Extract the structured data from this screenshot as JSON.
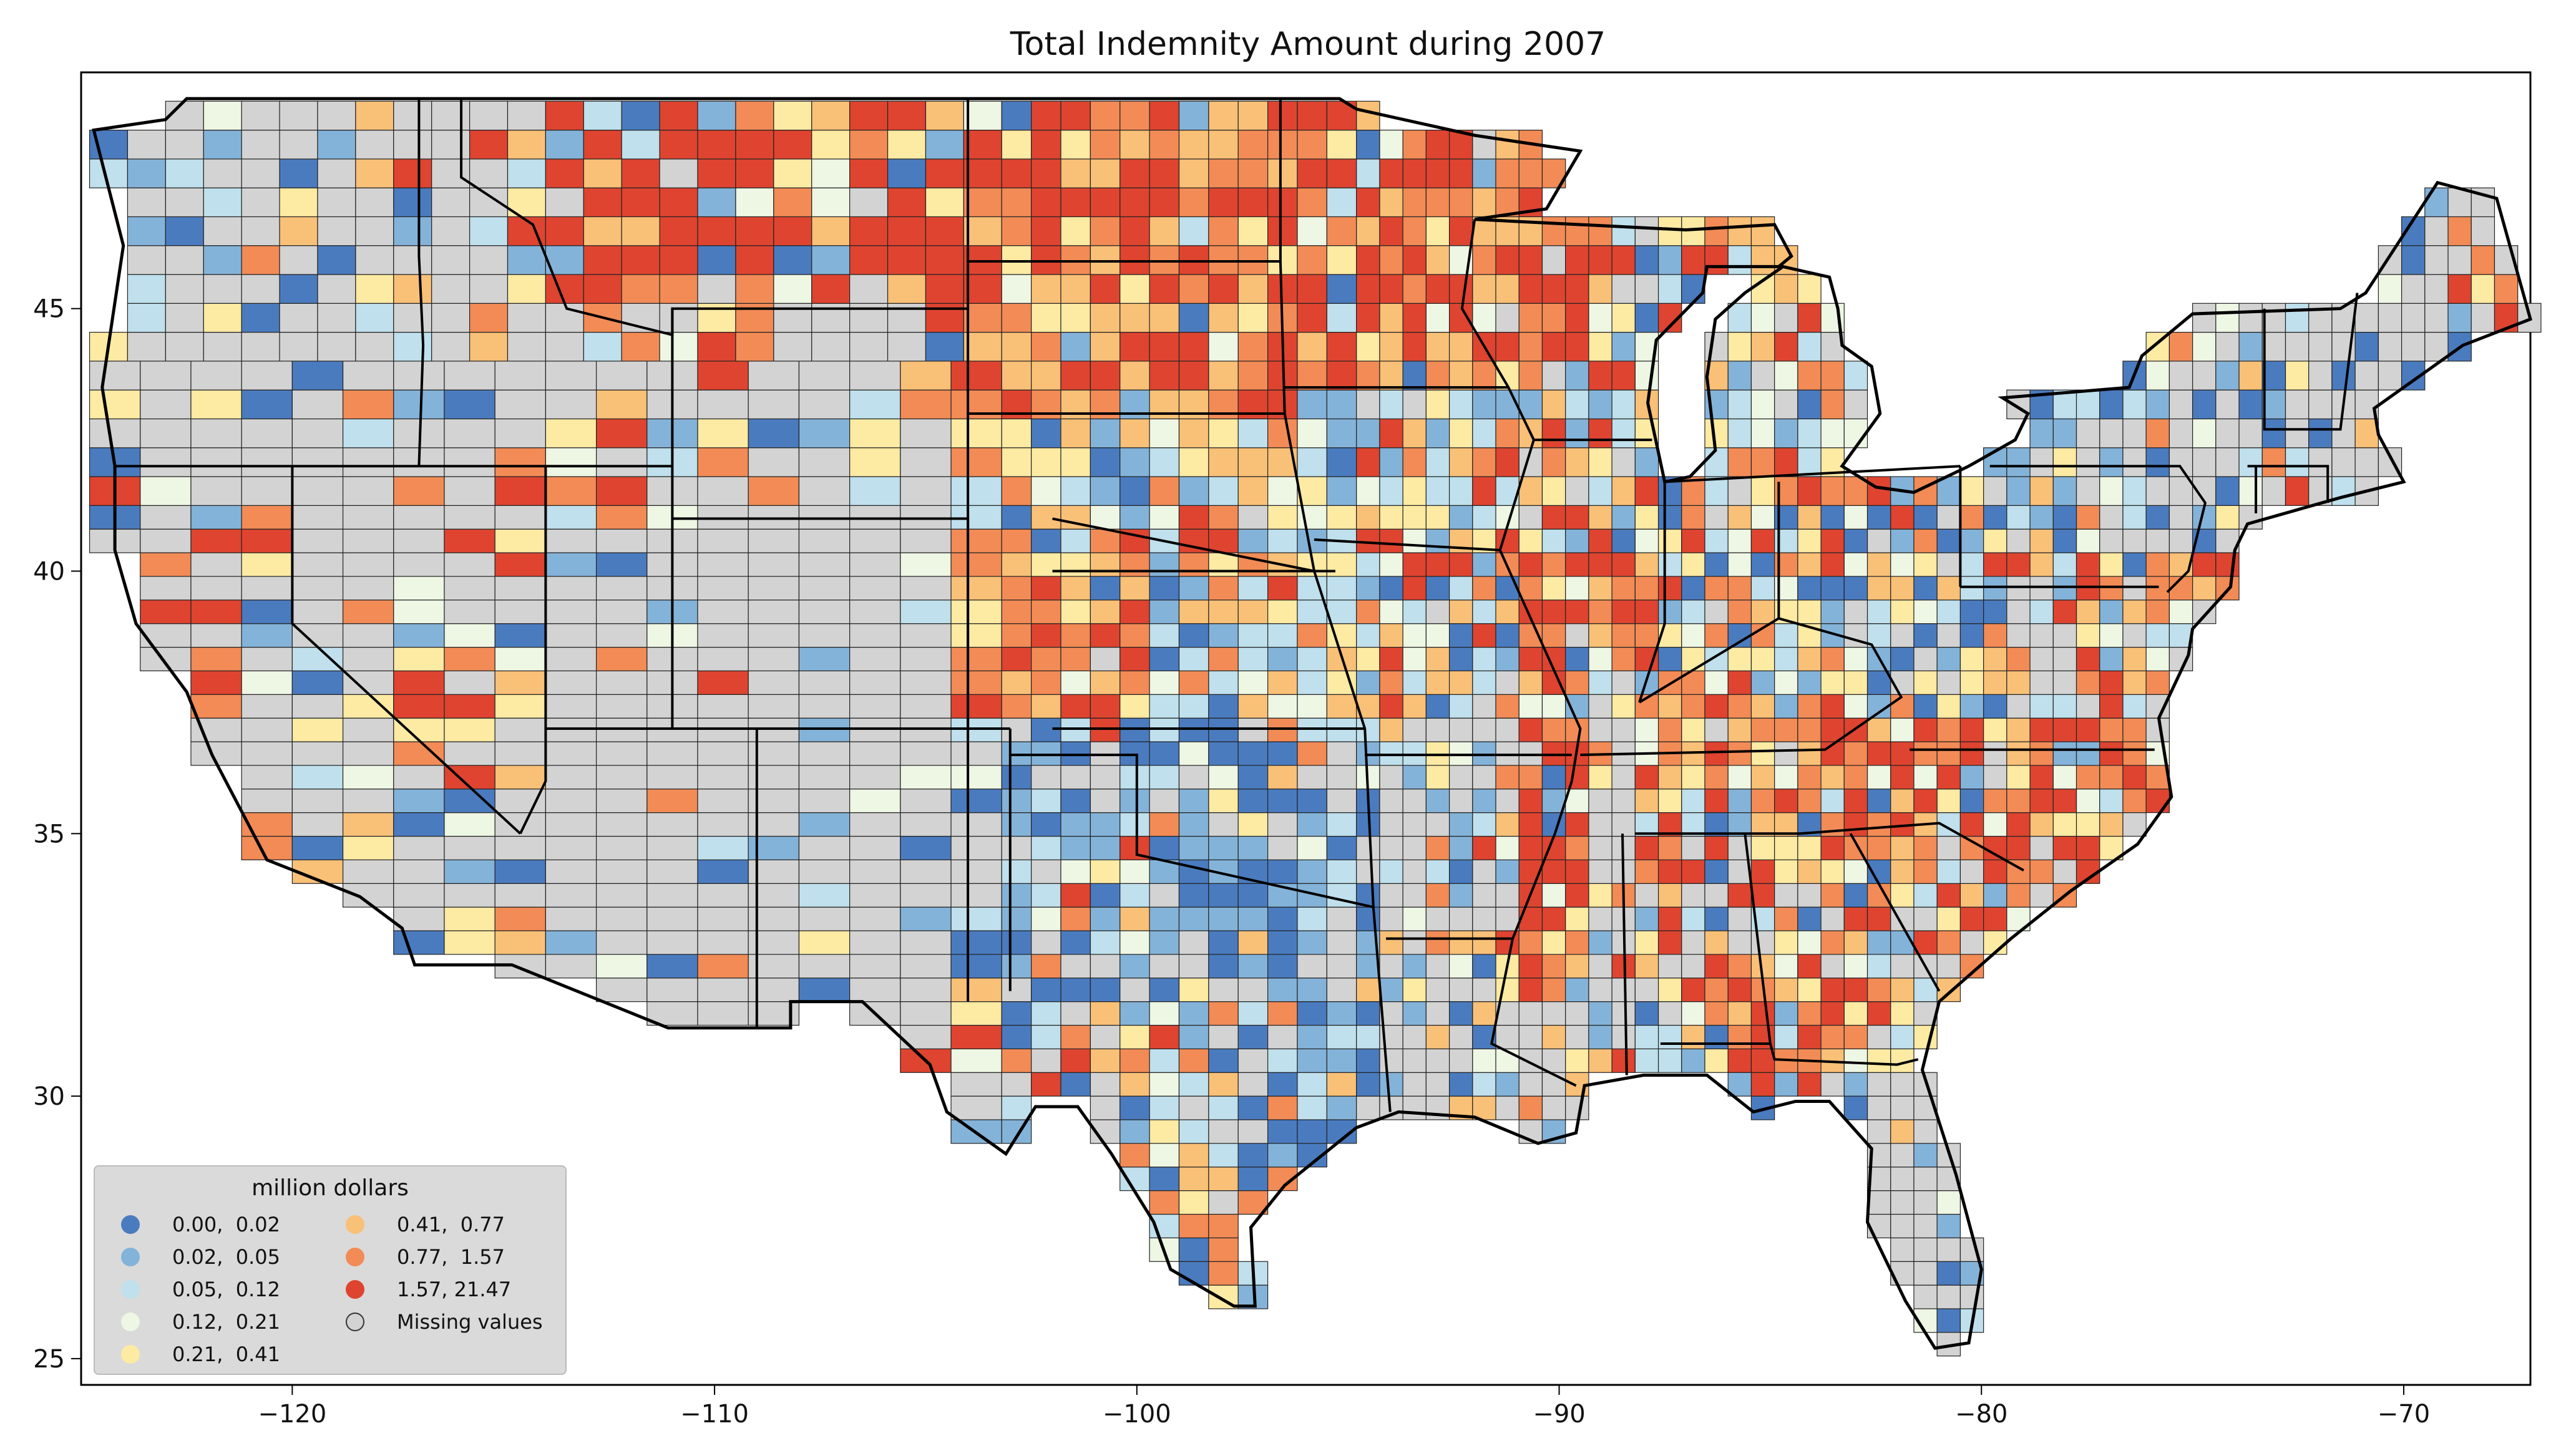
{
  "title": "Total Indemnity Amount during 2007",
  "legend": {
    "title": "million dollars",
    "entries": [
      {
        "label": "0.00,  0.02",
        "color": "#4a7bbf"
      },
      {
        "label": "0.02,  0.05",
        "color": "#84b3d9"
      },
      {
        "label": "0.05,  0.12",
        "color": "#bfe0ec"
      },
      {
        "label": "0.12,  0.21",
        "color": "#eef6e4"
      },
      {
        "label": "0.21,  0.41",
        "color": "#fdeaa3"
      },
      {
        "label": "0.41,  0.77",
        "color": "#f9c077"
      },
      {
        "label": "0.77,  1.57",
        "color": "#f28b56"
      },
      {
        "label": "1.57, 21.47",
        "color": "#de4430"
      },
      {
        "label": "Missing values",
        "color": "#d3d3d3"
      }
    ]
  },
  "chart_data": {
    "type": "choropleth",
    "title": "Total Indemnity Amount during 2007",
    "xlim": [
      -125,
      -67
    ],
    "ylim": [
      24.5,
      49.5
    ],
    "x_ticks": [
      -120,
      -110,
      -100,
      -90,
      -80,
      -70
    ],
    "y_ticks": [
      25,
      30,
      35,
      40,
      45
    ],
    "x_tick_labels": [
      "−120",
      "−110",
      "−100",
      "−90",
      "−80",
      "−70"
    ],
    "y_tick_labels": [
      "25",
      "30",
      "35",
      "40",
      "45"
    ],
    "legend_title": "million dollars",
    "legend_placement": "lower-left",
    "grid": false
  }
}
